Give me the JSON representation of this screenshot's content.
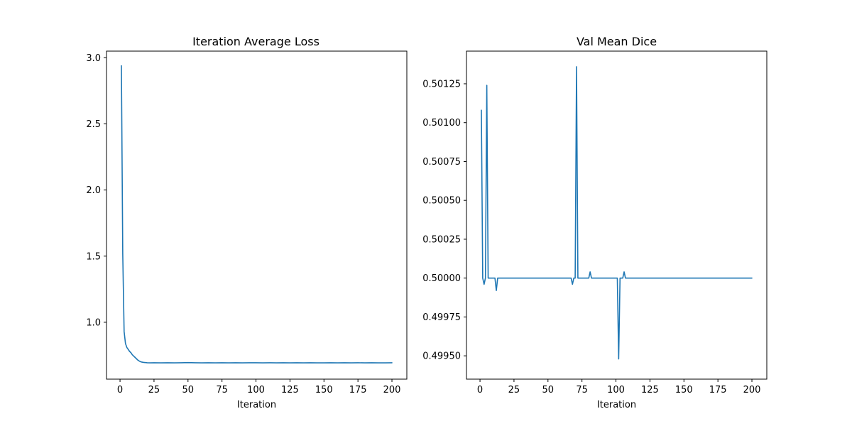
{
  "figure": {
    "background": "#ffffff",
    "line_color": "#1f77b4"
  },
  "chart_data": [
    {
      "type": "line",
      "title": "Iteration Average Loss",
      "xlabel": "Iteration",
      "ylabel": "",
      "xlim": [
        -9.95,
        210.95
      ],
      "ylim": [
        0.57,
        3.05
      ],
      "xticks": [
        0,
        25,
        50,
        75,
        100,
        125,
        150,
        175,
        200
      ],
      "yticks": [
        1.0,
        1.5,
        2.0,
        2.5,
        3.0
      ],
      "ytick_labels": [
        "1.0",
        "1.5",
        "2.0",
        "2.5",
        "3.0"
      ],
      "grid": false,
      "series": [
        {
          "x": [
            1,
            2,
            3,
            4,
            5,
            6,
            7,
            8,
            9,
            10,
            11,
            12,
            13,
            14,
            15,
            16,
            17,
            18,
            19,
            20,
            22,
            25,
            30,
            35,
            40,
            45,
            50,
            55,
            60,
            65,
            70,
            75,
            80,
            85,
            90,
            95,
            100,
            105,
            110,
            115,
            120,
            125,
            130,
            135,
            140,
            145,
            150,
            155,
            160,
            165,
            170,
            175,
            180,
            185,
            190,
            195,
            200
          ],
          "y": [
            2.94,
            1.52,
            0.93,
            0.84,
            0.81,
            0.795,
            0.78,
            0.77,
            0.755,
            0.745,
            0.735,
            0.725,
            0.715,
            0.708,
            0.702,
            0.699,
            0.697,
            0.696,
            0.695,
            0.694,
            0.693,
            0.694,
            0.693,
            0.694,
            0.693,
            0.694,
            0.695,
            0.694,
            0.693,
            0.694,
            0.693,
            0.694,
            0.693,
            0.694,
            0.693,
            0.694,
            0.694,
            0.693,
            0.694,
            0.693,
            0.694,
            0.693,
            0.694,
            0.693,
            0.694,
            0.693,
            0.693,
            0.694,
            0.693,
            0.694,
            0.693,
            0.694,
            0.693,
            0.694,
            0.693,
            0.693,
            0.694
          ]
        }
      ]
    },
    {
      "type": "line",
      "title": "Val Mean Dice",
      "xlabel": "Iteration",
      "ylabel": "",
      "xlim": [
        -9.95,
        210.95
      ],
      "ylim": [
        0.49935,
        0.50146
      ],
      "xticks": [
        0,
        25,
        50,
        75,
        100,
        125,
        150,
        175,
        200
      ],
      "yticks": [
        0.4995,
        0.49975,
        0.5,
        0.50025,
        0.5005,
        0.50075,
        0.501,
        0.50125
      ],
      "ytick_labels": [
        "0.49950",
        "0.49975",
        "0.50000",
        "0.50025",
        "0.50050",
        "0.50075",
        "0.50100",
        "0.50125"
      ],
      "grid": false,
      "series": [
        {
          "x": [
            1,
            2,
            3,
            4,
            5,
            6,
            7,
            8,
            9,
            10,
            11,
            12,
            13,
            14,
            66,
            67,
            68,
            69,
            70,
            71,
            72,
            73,
            80,
            81,
            82,
            100,
            101,
            102,
            103,
            104,
            105,
            106,
            107,
            108,
            200
          ],
          "y": [
            0.50108,
            0.5,
            0.49996,
            0.5,
            0.50124,
            0.5,
            0.5,
            0.5,
            0.5,
            0.5,
            0.5,
            0.49992,
            0.5,
            0.5,
            0.5,
            0.5,
            0.49996,
            0.5,
            0.5,
            0.50136,
            0.5,
            0.5,
            0.5,
            0.50004,
            0.5,
            0.5,
            0.5,
            0.49948,
            0.5,
            0.5,
            0.5,
            0.50004,
            0.5,
            0.5,
            0.5
          ]
        }
      ]
    }
  ]
}
